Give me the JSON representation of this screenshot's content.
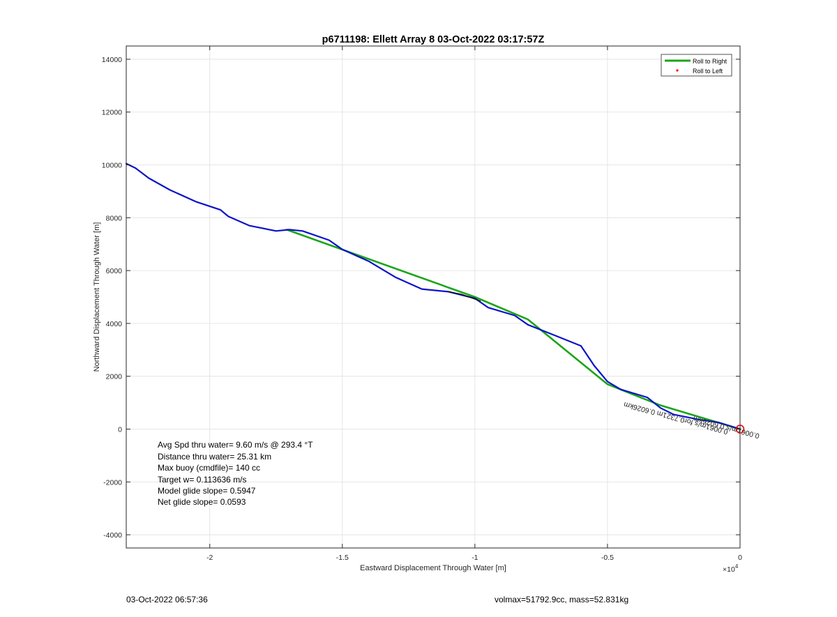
{
  "chart_data": {
    "type": "line",
    "title": "p6711198: Ellett Array 8 03-Oct-2022 03:17:57Z",
    "xlabel": "Eastward Displacement Through Water [m]",
    "ylabel": "Northward Displacement Through Water [m]",
    "x_exponent_label": "×10",
    "x_exponent_power": "4",
    "xlim": [
      -23150,
      0
    ],
    "ylim": [
      -4500,
      14500
    ],
    "xticks": [
      -20000,
      -15000,
      -10000,
      -5000,
      0
    ],
    "xtick_labels": [
      "-2",
      "-1.5",
      "-1",
      "-0.5",
      "0"
    ],
    "yticks": [
      -4000,
      -2000,
      0,
      2000,
      4000,
      6000,
      8000,
      10000,
      12000,
      14000
    ],
    "ytick_labels": [
      "-4000",
      "-2000",
      "0",
      "2000",
      "4000",
      "6000",
      "8000",
      "10000",
      "12000",
      "14000"
    ],
    "grid": true,
    "legend_position": "top-right",
    "series": [
      {
        "name": "Roll to Right",
        "style": "line",
        "color": "#1aa51a",
        "points": [
          [
            -17100,
            7550
          ],
          [
            -10000,
            5000
          ],
          [
            -8000,
            4150
          ],
          [
            -5000,
            1700
          ],
          [
            -3000,
            900
          ],
          [
            0,
            0
          ]
        ]
      },
      {
        "name": "Roll to Left",
        "style": "marker",
        "color": "#ff0000",
        "points": []
      },
      {
        "name": "",
        "style": "line",
        "color": "#0a14c8",
        "points": [
          [
            -23150,
            10050
          ],
          [
            -22800,
            9880
          ],
          [
            -22300,
            9500
          ],
          [
            -21500,
            9050
          ],
          [
            -20500,
            8600
          ],
          [
            -19600,
            8300
          ],
          [
            -19300,
            8050
          ],
          [
            -18500,
            7700
          ],
          [
            -17500,
            7500
          ],
          [
            -17000,
            7550
          ],
          [
            -16500,
            7500
          ],
          [
            -15500,
            7150
          ],
          [
            -15000,
            6800
          ],
          [
            -14000,
            6350
          ],
          [
            -13000,
            5750
          ],
          [
            -12000,
            5300
          ],
          [
            -11000,
            5200
          ],
          [
            -10000,
            4950
          ],
          [
            -9500,
            4600
          ],
          [
            -8500,
            4300
          ],
          [
            -8000,
            3950
          ],
          [
            -7000,
            3550
          ],
          [
            -6000,
            3150
          ],
          [
            -5500,
            2400
          ],
          [
            -5000,
            1800
          ],
          [
            -4500,
            1500
          ],
          [
            -3500,
            1200
          ],
          [
            -3000,
            800
          ],
          [
            -2500,
            550
          ],
          [
            -1500,
            350
          ],
          [
            -800,
            250
          ],
          [
            0,
            0
          ]
        ]
      },
      {
        "name": "",
        "style": "line",
        "color": "#111111",
        "points": [
          [
            -11000,
            5200
          ],
          [
            -10500,
            5100
          ],
          [
            -9800,
            4850
          ]
        ]
      }
    ],
    "end_marker": {
      "x": 0,
      "y": 0,
      "color": "#d01010"
    },
    "annotations": {
      "stats": [
        "Avg Spd thru water=  9.60 m/s @ 293.4 °T",
        "Distance thru water= 25.31 km",
        "Max buoy (cmdfile)= 140 cc",
        "Target w= 0.113636 m/s",
        "Model glide slope= 0.5947",
        "Net glide slope= 0.0593"
      ],
      "rotated_text": "0.0061m/s for0.7321m  0.6026km",
      "rotated_at": [
        -2400,
        500
      ],
      "rotated_text_2": "0.0061m/s 0.6026km",
      "rotated_at_2": [
        -500,
        150
      ]
    }
  },
  "footer": {
    "left": "03-Oct-2022 06:57:36",
    "right": "volmax=51792.9cc, mass=52.831kg"
  },
  "colors": {
    "axes": "#262626",
    "grid": "#dfdfdf"
  }
}
